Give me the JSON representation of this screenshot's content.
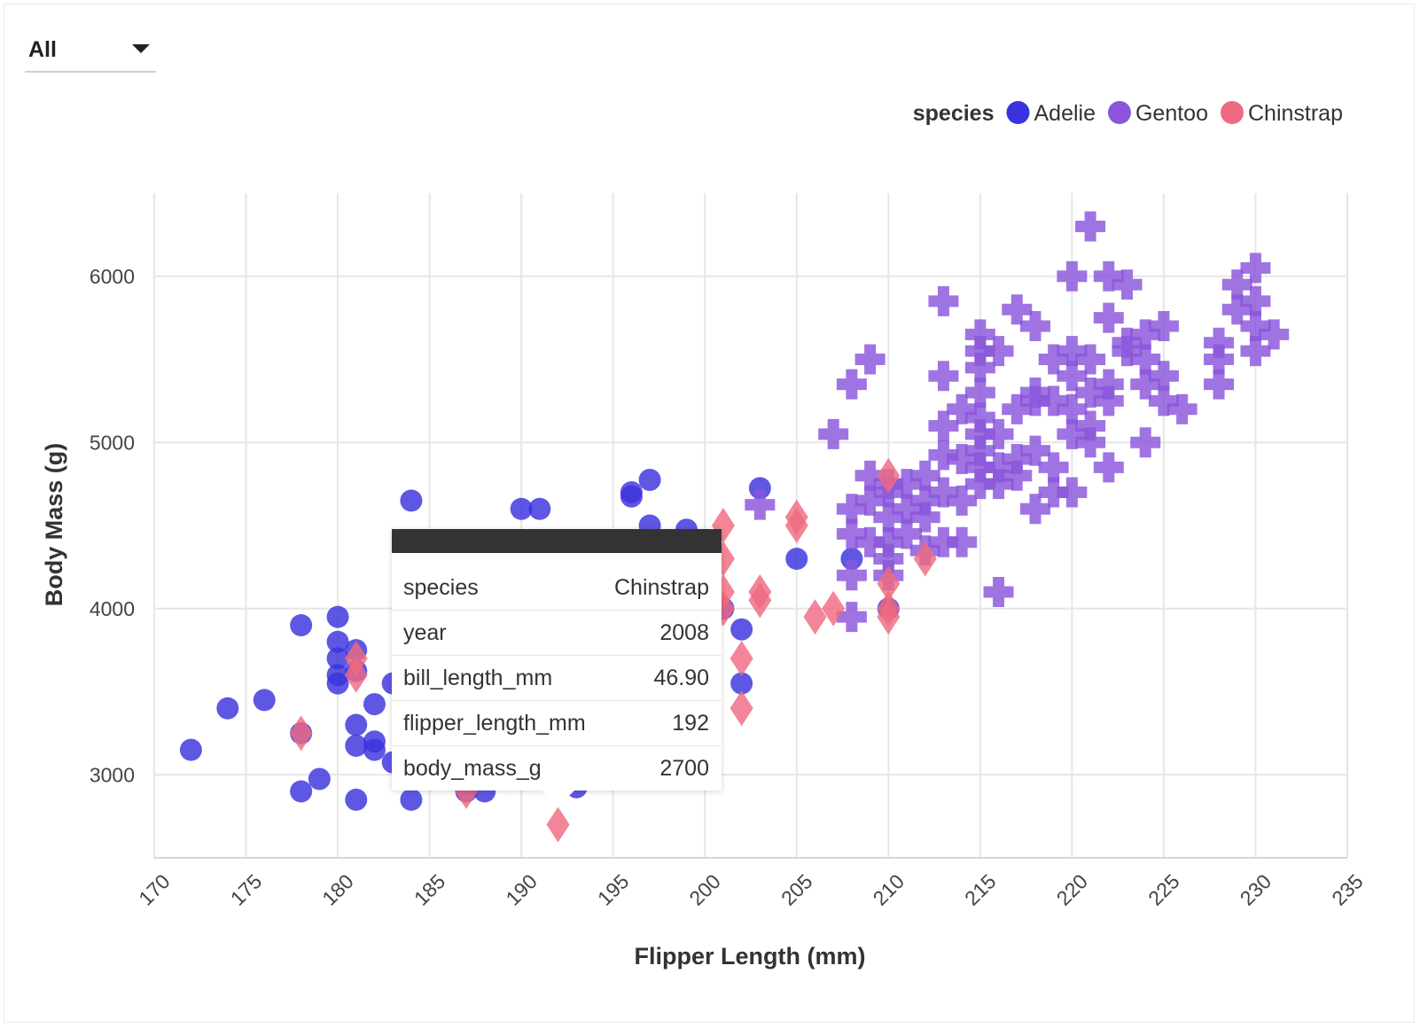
{
  "filter": {
    "selected": "All"
  },
  "tooltip": {
    "rows": [
      {
        "key": "species",
        "value": "Chinstrap"
      },
      {
        "key": "year",
        "value": "2008"
      },
      {
        "key": "bill_length_mm",
        "value": "46.90"
      },
      {
        "key": "flipper_length_mm",
        "value": "192"
      },
      {
        "key": "body_mass_g",
        "value": "2700"
      }
    ]
  },
  "chart_data": {
    "type": "scatter",
    "xlabel": "Flipper Length (mm)",
    "ylabel": "Body Mass (g)",
    "xlim": [
      170,
      235
    ],
    "ylim": [
      2500,
      6500
    ],
    "xticks": [
      170,
      175,
      180,
      185,
      190,
      195,
      200,
      205,
      210,
      215,
      220,
      225,
      230,
      235
    ],
    "yticks": [
      3000,
      4000,
      5000,
      6000
    ],
    "grid": true,
    "legend": {
      "title": "species",
      "placement": "top-right"
    },
    "series": [
      {
        "name": "Adelie",
        "color": "#3b32dd",
        "marker": "circle",
        "points": [
          [
            172,
            3150
          ],
          [
            174,
            3400
          ],
          [
            176,
            3450
          ],
          [
            178,
            3900
          ],
          [
            178,
            3250
          ],
          [
            178,
            2900
          ],
          [
            179,
            2975
          ],
          [
            180,
            3950
          ],
          [
            180,
            3800
          ],
          [
            180,
            3700
          ],
          [
            180,
            3600
          ],
          [
            180,
            3550
          ],
          [
            181,
            3750
          ],
          [
            181,
            3625
          ],
          [
            181,
            3300
          ],
          [
            181,
            3175
          ],
          [
            181,
            2850
          ],
          [
            182,
            3425
          ],
          [
            182,
            3200
          ],
          [
            182,
            3150
          ],
          [
            183,
            3550
          ],
          [
            183,
            3075
          ],
          [
            184,
            4650
          ],
          [
            184,
            2850
          ],
          [
            187,
            2900
          ],
          [
            188,
            2900
          ],
          [
            190,
            4600
          ],
          [
            191,
            4600
          ],
          [
            193,
            2925
          ],
          [
            196,
            4675
          ],
          [
            196,
            4700
          ],
          [
            197,
            4775
          ],
          [
            197,
            4500
          ],
          [
            199,
            4475
          ],
          [
            201,
            4000
          ],
          [
            202,
            3875
          ],
          [
            202,
            3550
          ],
          [
            203,
            4725
          ],
          [
            205,
            4300
          ],
          [
            208,
            4300
          ],
          [
            210,
            4000
          ]
        ]
      },
      {
        "name": "Gentoo",
        "color": "#8a55dc",
        "marker": "plus",
        "points": [
          [
            203,
            4625
          ],
          [
            207,
            5050
          ],
          [
            208,
            5350
          ],
          [
            208,
            4600
          ],
          [
            208,
            4450
          ],
          [
            208,
            4200
          ],
          [
            208,
            3950
          ],
          [
            209,
            5500
          ],
          [
            209,
            4800
          ],
          [
            209,
            4650
          ],
          [
            209,
            4400
          ],
          [
            210,
            4750
          ],
          [
            210,
            4700
          ],
          [
            210,
            4550
          ],
          [
            210,
            4400
          ],
          [
            210,
            4300
          ],
          [
            210,
            4200
          ],
          [
            211,
            4750
          ],
          [
            211,
            4600
          ],
          [
            211,
            4450
          ],
          [
            212,
            4800
          ],
          [
            212,
            4650
          ],
          [
            212,
            4550
          ],
          [
            212,
            4350
          ],
          [
            213,
            5850
          ],
          [
            213,
            5400
          ],
          [
            213,
            5100
          ],
          [
            213,
            4925
          ],
          [
            213,
            4700
          ],
          [
            213,
            4400
          ],
          [
            214,
            5200
          ],
          [
            214,
            4900
          ],
          [
            214,
            4650
          ],
          [
            214,
            4400
          ],
          [
            215,
            5650
          ],
          [
            215,
            5550
          ],
          [
            215,
            5450
          ],
          [
            215,
            5300
          ],
          [
            215,
            5150
          ],
          [
            215,
            5050
          ],
          [
            215,
            4950
          ],
          [
            215,
            4850
          ],
          [
            215,
            4750
          ],
          [
            216,
            5550
          ],
          [
            216,
            5050
          ],
          [
            216,
            4850
          ],
          [
            216,
            4750
          ],
          [
            216,
            4100
          ],
          [
            217,
            5800
          ],
          [
            217,
            5200
          ],
          [
            217,
            4900
          ],
          [
            217,
            4800
          ],
          [
            218,
            5700
          ],
          [
            218,
            5300
          ],
          [
            218,
            5250
          ],
          [
            218,
            4950
          ],
          [
            218,
            4600
          ],
          [
            219,
            5500
          ],
          [
            219,
            5250
          ],
          [
            219,
            4850
          ],
          [
            219,
            4700
          ],
          [
            220,
            6000
          ],
          [
            220,
            5550
          ],
          [
            220,
            5400
          ],
          [
            220,
            5200
          ],
          [
            220,
            5050
          ],
          [
            220,
            4700
          ],
          [
            221,
            6300
          ],
          [
            221,
            5500
          ],
          [
            221,
            5300
          ],
          [
            221,
            5100
          ],
          [
            221,
            5000
          ],
          [
            222,
            6000
          ],
          [
            222,
            5750
          ],
          [
            222,
            5350
          ],
          [
            222,
            5250
          ],
          [
            222,
            4850
          ],
          [
            223,
            5950
          ],
          [
            223,
            5600
          ],
          [
            223,
            5550
          ],
          [
            224,
            5650
          ],
          [
            224,
            5500
          ],
          [
            224,
            5350
          ],
          [
            224,
            5000
          ],
          [
            225,
            5700
          ],
          [
            225,
            5400
          ],
          [
            225,
            5250
          ],
          [
            226,
            5200
          ],
          [
            228,
            5600
          ],
          [
            228,
            5500
          ],
          [
            228,
            5350
          ],
          [
            229,
            5950
          ],
          [
            229,
            5800
          ],
          [
            230,
            6050
          ],
          [
            230,
            5850
          ],
          [
            230,
            5700
          ],
          [
            230,
            5550
          ],
          [
            231,
            5650
          ]
        ]
      },
      {
        "name": "Chinstrap",
        "color": "#ef6a80",
        "marker": "diamond",
        "points": [
          [
            178,
            3250
          ],
          [
            181,
            3700
          ],
          [
            181,
            3600
          ],
          [
            187,
            2900
          ],
          [
            192,
            2700
          ],
          [
            201,
            4500
          ],
          [
            201,
            4300
          ],
          [
            201,
            4100
          ],
          [
            201,
            4000
          ],
          [
            202,
            3700
          ],
          [
            202,
            3400
          ],
          [
            203,
            4100
          ],
          [
            203,
            4050
          ],
          [
            205,
            4550
          ],
          [
            205,
            4500
          ],
          [
            206,
            3950
          ],
          [
            207,
            4000
          ],
          [
            210,
            4800
          ],
          [
            210,
            4150
          ],
          [
            210,
            4000
          ],
          [
            210,
            3950
          ],
          [
            212,
            4300
          ]
        ]
      }
    ]
  }
}
